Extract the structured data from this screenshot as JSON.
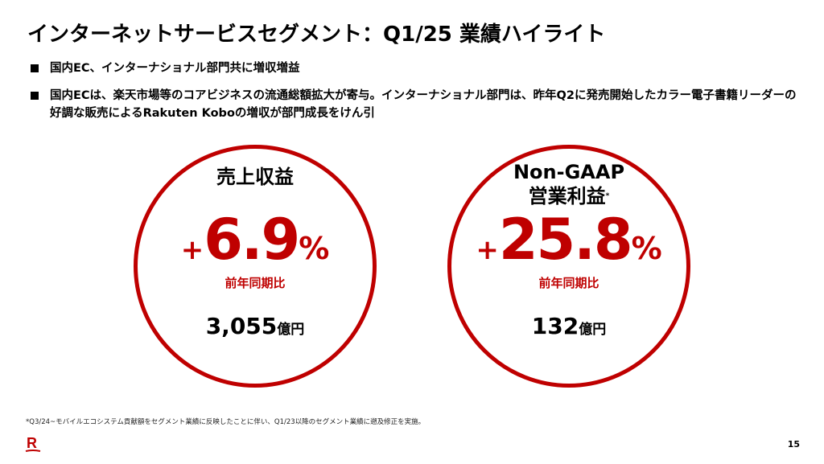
{
  "title": "インターネットサービスセグメント：Q1/25 業績ハイライト",
  "bullets": [
    "国内EC、インターナショナル部門共に増収増益",
    "国内ECは、楽天市場等のコアビジネスの流通総額拡大が寄与。インターナショナル部門は、昨年Q2に発売開始したカラー電子書籍リーダーの好調な販売によるRakuten Koboの増収が部門成長をけん引"
  ],
  "kpis": [
    {
      "label": "売上収益",
      "sign": "+",
      "value": "6.9",
      "unit": "%",
      "yoy": "前年同期比",
      "amount": "3,055",
      "amount_unit": "億円"
    },
    {
      "label_line1": "Non-GAAP",
      "label_line2": "営業利益",
      "note_mark": "*",
      "sign": "+",
      "value": "25.8",
      "unit": "%",
      "yoy": "前年同期比",
      "amount": "132",
      "amount_unit": "億円"
    }
  ],
  "footnote": "*Q3/24~モバイルエコシステム貢献額をセグメント業績に反映したことに伴い、Q1/23以降のセグメント業績に遡及修正を実施。",
  "logo_text": "R",
  "page_number": "15",
  "colors": {
    "accent": "#bf0000"
  }
}
